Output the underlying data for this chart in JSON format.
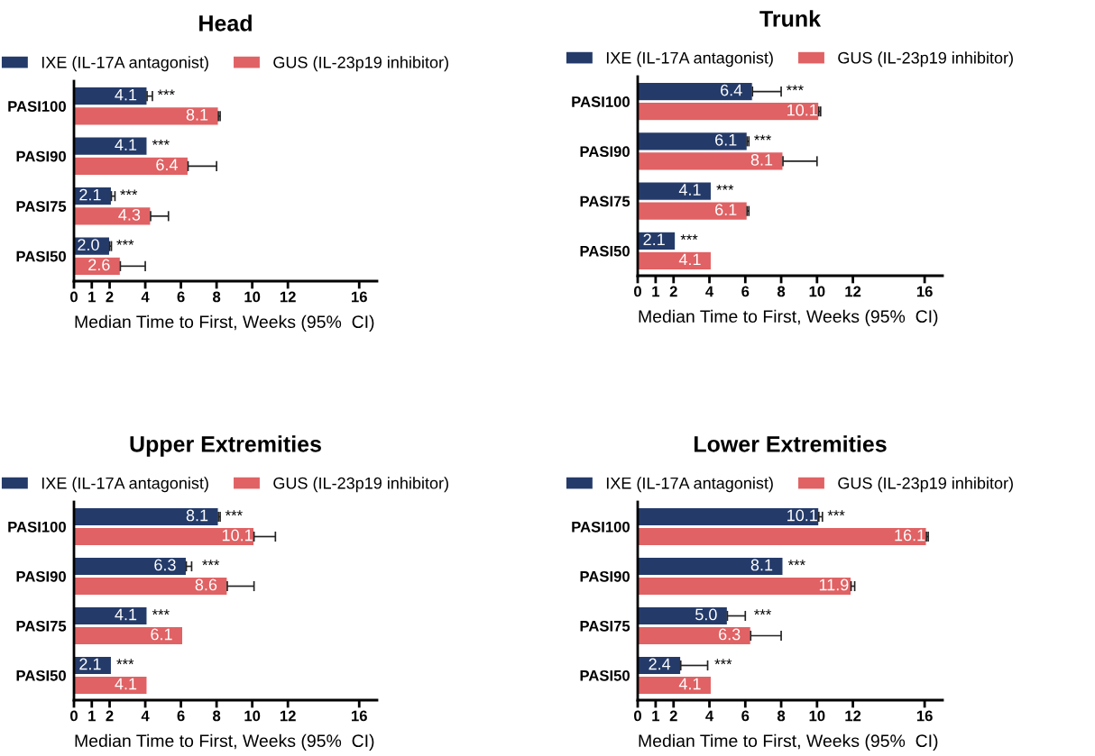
{
  "chart_data": [
    {
      "type": "bar",
      "orientation": "horizontal",
      "title": "Head",
      "xlabel": "Median Time to First, Weeks (95%  CI)",
      "categories": [
        "PASI100",
        "PASI90",
        "PASI75",
        "PASI50"
      ],
      "xlim": [
        0,
        17
      ],
      "xticks": [
        0,
        1,
        2,
        4,
        6,
        8,
        10,
        12,
        16
      ],
      "legend": "top",
      "grid": false,
      "series": [
        {
          "name": "IXE (IL-17A antagonist)",
          "color": "#243b6a",
          "values": [
            4.1,
            4.1,
            2.1,
            2.0
          ],
          "value_labels": [
            "4.1",
            "4.1",
            "2.1",
            "2.0"
          ],
          "errors": [
            [
              4.1,
              4.4
            ],
            null,
            [
              2.1,
              2.3
            ],
            [
              2.0,
              2.1
            ]
          ]
        },
        {
          "name": "GUS (IL-23p19 inhibitor)",
          "color": "#e06264",
          "values": [
            8.1,
            6.4,
            4.3,
            2.6
          ],
          "value_labels": [
            "8.1",
            "6.4",
            "4.3",
            "2.6"
          ],
          "errors": [
            [
              8.1,
              8.2
            ],
            [
              6.4,
              8.0
            ],
            [
              4.3,
              5.3
            ],
            [
              2.6,
              4.0
            ]
          ]
        }
      ],
      "annotations": [
        {
          "text": "***",
          "x": 4.4,
          "y": "PASI100"
        },
        {
          "text": "***",
          "x": 4.1,
          "y": "PASI90"
        },
        {
          "text": "***",
          "x": 2.3,
          "y": "PASI75"
        },
        {
          "text": "***",
          "x": 2.1,
          "y": "PASI50"
        }
      ]
    },
    {
      "type": "bar",
      "orientation": "horizontal",
      "title": "Trunk",
      "xlabel": "Median Time to First, Weeks (95%  CI)",
      "categories": [
        "PASI100",
        "PASI90",
        "PASI75",
        "PASI50"
      ],
      "xlim": [
        0,
        17
      ],
      "xticks": [
        0,
        1,
        2,
        4,
        6,
        8,
        10,
        12,
        16
      ],
      "legend": "top",
      "grid": false,
      "series": [
        {
          "name": "IXE (IL-17A antagonist)",
          "color": "#243b6a",
          "values": [
            6.4,
            6.1,
            4.1,
            2.1
          ],
          "value_labels": [
            "6.4",
            "6.1",
            "4.1",
            "2.1"
          ],
          "errors": [
            [
              6.4,
              8.0
            ],
            [
              6.1,
              6.2
            ],
            null,
            null
          ]
        },
        {
          "name": "GUS (IL-23p19 inhibitor)",
          "color": "#e06264",
          "values": [
            10.1,
            8.1,
            6.1,
            4.1
          ],
          "value_labels": [
            "10.1",
            "8.1",
            "6.1",
            "4.1"
          ],
          "errors": [
            [
              10.1,
              10.2
            ],
            [
              8.1,
              10.0
            ],
            [
              6.1,
              6.2
            ],
            null
          ]
        }
      ],
      "annotations": [
        {
          "text": "***",
          "x": 8.0,
          "y": "PASI100"
        },
        {
          "text": "***",
          "x": 6.2,
          "y": "PASI90"
        },
        {
          "text": "***",
          "x": 4.1,
          "y": "PASI75"
        },
        {
          "text": "***",
          "x": 2.1,
          "y": "PASI50"
        }
      ]
    },
    {
      "type": "bar",
      "orientation": "horizontal",
      "title": "Upper Extremities",
      "xlabel": "Median Time to First, Weeks (95%  CI)",
      "categories": [
        "PASI100",
        "PASI90",
        "PASI75",
        "PASI50"
      ],
      "xlim": [
        0,
        17
      ],
      "xticks": [
        0,
        1,
        2,
        4,
        6,
        8,
        10,
        12,
        16
      ],
      "legend": "top",
      "grid": false,
      "series": [
        {
          "name": "IXE (IL-17A antagonist)",
          "color": "#243b6a",
          "values": [
            8.1,
            6.3,
            4.1,
            2.1
          ],
          "value_labels": [
            "8.1",
            "6.3",
            "4.1",
            "2.1"
          ],
          "errors": [
            [
              8.1,
              8.2
            ],
            [
              6.3,
              6.6
            ],
            null,
            null
          ]
        },
        {
          "name": "GUS (IL-23p19 inhibitor)",
          "color": "#e06264",
          "values": [
            10.1,
            8.6,
            6.1,
            4.1
          ],
          "value_labels": [
            "10.1",
            "8.6",
            "6.1",
            "4.1"
          ],
          "errors": [
            [
              10.1,
              11.3
            ],
            [
              8.6,
              10.1
            ],
            null,
            null
          ]
        }
      ],
      "annotations": [
        {
          "text": "***",
          "x": 8.2,
          "y": "PASI100"
        },
        {
          "text": "***",
          "x": 6.9,
          "y": "PASI90"
        },
        {
          "text": "***",
          "x": 4.1,
          "y": "PASI75"
        },
        {
          "text": "***",
          "x": 2.1,
          "y": "PASI50"
        }
      ]
    },
    {
      "type": "bar",
      "orientation": "horizontal",
      "title": "Lower Extremities",
      "xlabel": "Median Time to First, Weeks (95%  CI)",
      "categories": [
        "PASI100",
        "PASI90",
        "PASI75",
        "PASI50"
      ],
      "xlim": [
        0,
        17
      ],
      "xticks": [
        0,
        1,
        2,
        4,
        6,
        8,
        10,
        12,
        16
      ],
      "legend": "top",
      "grid": false,
      "series": [
        {
          "name": "IXE (IL-17A antagonist)",
          "color": "#243b6a",
          "values": [
            10.1,
            8.1,
            5.0,
            2.4
          ],
          "value_labels": [
            "10.1",
            "8.1",
            "5.0",
            "2.4"
          ],
          "errors": [
            [
              10.1,
              10.3
            ],
            null,
            [
              5.0,
              6.0
            ],
            [
              2.4,
              3.9
            ]
          ]
        },
        {
          "name": "GUS (IL-23p19 inhibitor)",
          "color": "#e06264",
          "values": [
            16.1,
            11.9,
            6.3,
            4.1
          ],
          "value_labels": [
            "16.1",
            "11.9",
            "6.3",
            "4.1"
          ],
          "errors": [
            [
              16.1,
              16.2
            ],
            [
              11.9,
              12.1
            ],
            [
              6.3,
              8.0
            ],
            null
          ]
        }
      ],
      "annotations": [
        {
          "text": "***",
          "x": 10.3,
          "y": "PASI100"
        },
        {
          "text": "***",
          "x": 8.1,
          "y": "PASI90"
        },
        {
          "text": "***",
          "x": 6.2,
          "y": "PASI75"
        },
        {
          "text": "***",
          "x": 4.0,
          "y": "PASI50"
        }
      ]
    }
  ]
}
